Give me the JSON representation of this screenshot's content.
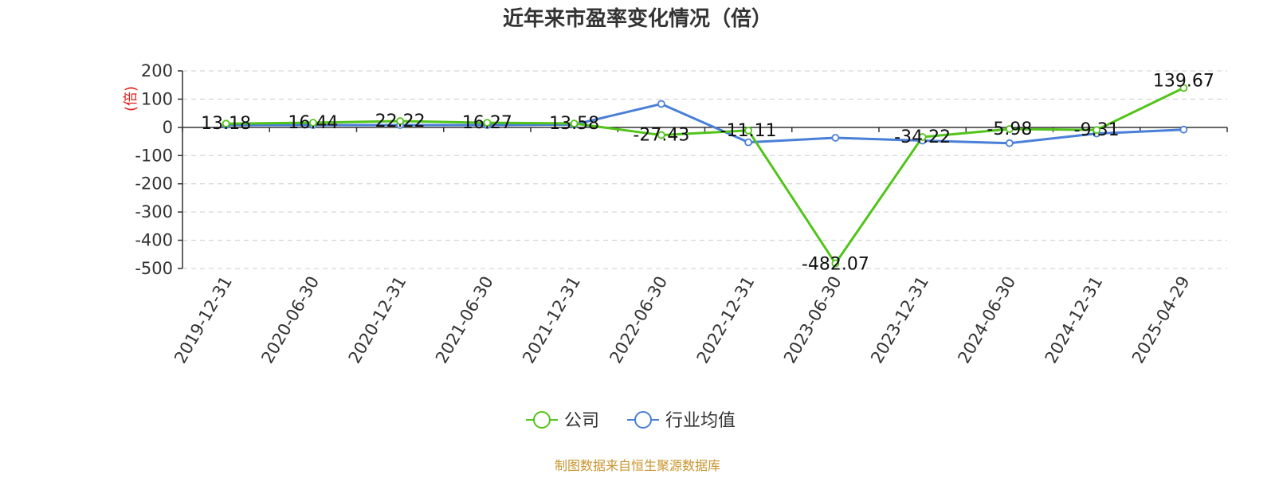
{
  "chart_data": {
    "type": "line",
    "title": "近年来市盈率变化情况（倍）",
    "ylabel": "(倍)",
    "xlabel": "",
    "categories": [
      "2019-12-31",
      "2020-06-30",
      "2020-12-31",
      "2021-06-30",
      "2021-12-31",
      "2022-06-30",
      "2022-12-31",
      "2023-06-30",
      "2023-12-31",
      "2024-06-30",
      "2024-12-31",
      "2025-04-29"
    ],
    "ylim": [
      -500,
      200
    ],
    "yticks": [
      200,
      100,
      0,
      -100,
      -200,
      -300,
      -400,
      -500
    ],
    "grid": true,
    "legend_position": "bottom",
    "series": [
      {
        "name": "公司",
        "color": "#52c41a",
        "values": [
          13.18,
          16.44,
          22.22,
          16.27,
          13.58,
          -27.43,
          -11.11,
          -482.07,
          -34.22,
          -5.98,
          -9.31,
          139.67
        ],
        "labels": [
          "13.18",
          "16.44",
          "22.22",
          "16.27",
          "13.58",
          "-27.43",
          "-11.11",
          "-482.07",
          "-34.22",
          "-5.98",
          "-9.31",
          "139.67"
        ]
      },
      {
        "name": "行业均值",
        "color": "#4a7fd8",
        "values": [
          8,
          8,
          8,
          8,
          10,
          83,
          -53,
          -37,
          -47,
          -56,
          -22,
          -8
        ]
      }
    ]
  },
  "source": "制图数据来自恒生聚源数据库"
}
